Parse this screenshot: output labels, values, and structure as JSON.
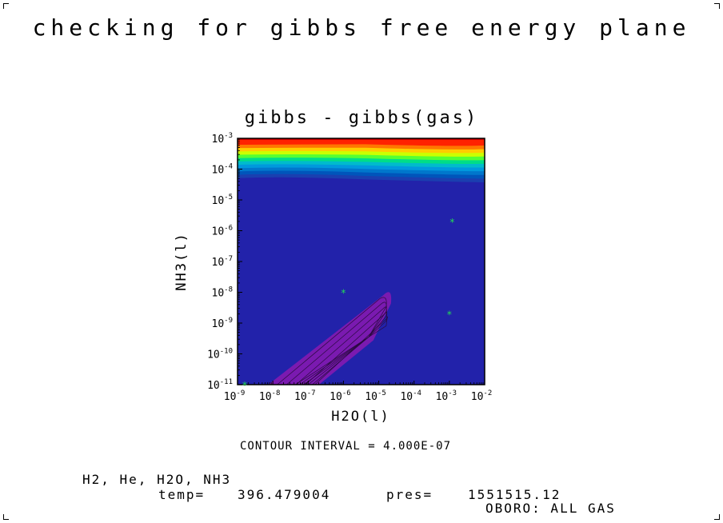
{
  "header": {
    "title": "checking for gibbs free energy plane"
  },
  "chart_data": {
    "type": "heatmap",
    "title": "gibbs - gibbs(gas)",
    "xlabel": "H2O(l)",
    "ylabel": "NH3(l)",
    "x_scale": "log",
    "y_scale": "log",
    "xlim": [
      1e-09,
      0.01
    ],
    "ylim": [
      1e-11,
      0.001
    ],
    "x_ticks": [
      {
        "base": "10",
        "exp": "-9"
      },
      {
        "base": "10",
        "exp": "-8"
      },
      {
        "base": "10",
        "exp": "-7"
      },
      {
        "base": "10",
        "exp": "-6"
      },
      {
        "base": "10",
        "exp": "-5"
      },
      {
        "base": "10",
        "exp": "-4"
      },
      {
        "base": "10",
        "exp": "-3"
      },
      {
        "base": "10",
        "exp": "-2"
      }
    ],
    "y_ticks": [
      {
        "base": "10",
        "exp": "-11"
      },
      {
        "base": "10",
        "exp": "-10"
      },
      {
        "base": "10",
        "exp": "-9"
      },
      {
        "base": "10",
        "exp": "-8"
      },
      {
        "base": "10",
        "exp": "-7"
      },
      {
        "base": "10",
        "exp": "-6"
      },
      {
        "base": "10",
        "exp": "-5"
      },
      {
        "base": "10",
        "exp": "-4"
      },
      {
        "base": "10",
        "exp": "-3"
      }
    ],
    "markers": [
      {
        "x": 1.6e-09,
        "y": 1e-11
      },
      {
        "x": 1e-06,
        "y": 1e-08
      },
      {
        "x": 0.0012,
        "y": 2e-06
      },
      {
        "x": 0.001,
        "y": 2e-09
      }
    ],
    "marker_color": "#22dd55",
    "background_color": "#2222aa",
    "band_colors": [
      "#ff2200",
      "#ff7700",
      "#ffcc00",
      "#ccff00",
      "#55ff33",
      "#00dd88",
      "#00bbcc",
      "#0099dd",
      "#0077cc",
      "#0055bb",
      "#1a3fb0"
    ],
    "lobe_color": "#7a1ab0",
    "contour_interval": "CONTOUR INTERVAL = 4.000E-07"
  },
  "footer": {
    "species": "H2, He, H2O, NH3",
    "temp_label": "temp=",
    "temp_value": "396.479004",
    "pres_label": "pres=",
    "pres_value": "1551515.12",
    "note": "OBORO: ALL GAS"
  }
}
